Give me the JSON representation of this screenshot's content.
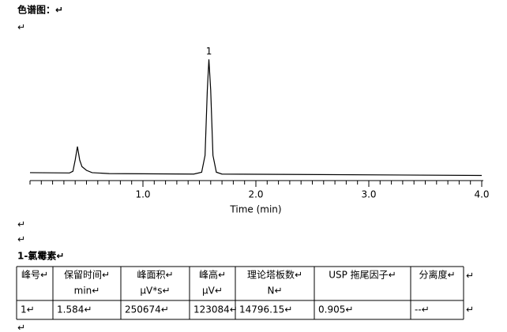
{
  "heading": "色谱图：↵",
  "blank_lines": [
    "↵",
    "↵",
    "↵",
    "↵"
  ],
  "chromatogram": {
    "type": "line",
    "color": "#000000",
    "x": [
      0,
      0.35,
      0.38,
      0.4,
      0.42,
      0.44,
      0.46,
      0.5,
      0.55,
      0.7,
      1.45,
      1.52,
      1.55,
      1.57,
      1.584,
      1.6,
      1.62,
      1.65,
      1.7,
      4.0
    ],
    "values": [
      1500,
      1200,
      3000,
      15000,
      29500,
      15000,
      8000,
      4000,
      1500,
      500,
      0,
      2000,
      20000,
      90000,
      123084,
      90000,
      20000,
      2000,
      0,
      -1500
    ],
    "xlim": [
      0,
      4.0
    ],
    "ylim": [
      -7000,
      136000
    ],
    "xticks": [
      {
        "value": 1,
        "label": "1.0"
      },
      {
        "value": 2,
        "label": "2.0"
      },
      {
        "value": 3,
        "label": "3.0"
      },
      {
        "value": 4,
        "label": "4.0"
      }
    ],
    "xminorticks": [
      0,
      0.1,
      0.2,
      0.3,
      0.4,
      0.5,
      0.6,
      0.7,
      0.8,
      0.9,
      1.1,
      1.2,
      1.3,
      1.4,
      1.5,
      1.6,
      1.7,
      1.8,
      1.9,
      2.1,
      2.2,
      2.3,
      2.4,
      2.5,
      2.6,
      2.7,
      2.8,
      2.9,
      3.1,
      3.2,
      3.3,
      3.4,
      3.5,
      3.6,
      3.7,
      3.8,
      3.9
    ],
    "xlabel": "Time (min)",
    "annotations": [
      {
        "text": "1",
        "x": 1.584,
        "y": 123084
      }
    ]
  },
  "compound": "1-氯霉素↵",
  "table": {
    "header": [
      [
        "峰号↵"
      ],
      [
        "保留时间↵",
        "min↵"
      ],
      [
        "峰面积↵",
        "μV*s↵"
      ],
      [
        "峰高↵",
        "μV↵"
      ],
      [
        "理论塔板数↵",
        "N↵"
      ],
      [
        "USP 拖尾因子↵"
      ],
      [
        "分离度↵"
      ]
    ],
    "rows": [
      [
        "1↵",
        "1.584↵",
        "250674↵",
        "123084↵",
        "14796.15↵",
        "0.905↵",
        "--↵"
      ]
    ],
    "row_marks": [
      "↵",
      "↵"
    ]
  }
}
